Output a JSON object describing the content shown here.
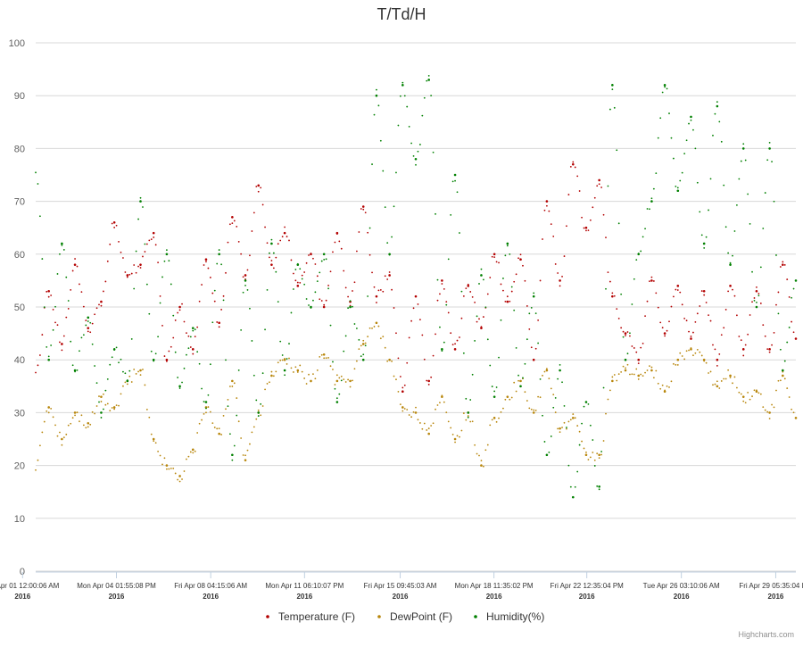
{
  "chart_data": {
    "type": "scatter",
    "title": "T/Td/H",
    "ylim": [
      0,
      100
    ],
    "y_ticks": [
      0,
      10,
      20,
      30,
      40,
      50,
      60,
      70,
      80,
      90,
      100
    ],
    "x_range": [
      "2016-04-01T12:00:06",
      "2016-04-30T12:00:00"
    ],
    "x_ticks": [
      {
        "label": "Fri Apr 01 12:00:06 AM",
        "year": "2016",
        "t": "2016-04-01T00:00:06"
      },
      {
        "label": "Mon Apr 04 01:55:08 PM",
        "year": "2016",
        "t": "2016-04-04T13:55:08"
      },
      {
        "label": "Fri Apr 08 04:15:06 AM",
        "year": "2016",
        "t": "2016-04-08T04:15:06"
      },
      {
        "label": "Mon Apr 11 06:10:07 PM",
        "year": "2016",
        "t": "2016-04-11T18:10:07"
      },
      {
        "label": "Fri Apr 15 09:45:03 AM",
        "year": "2016",
        "t": "2016-04-15T09:45:03"
      },
      {
        "label": "Mon Apr 18 11:35:02 PM",
        "year": "2016",
        "t": "2016-04-18T23:35:02"
      },
      {
        "label": "Fri Apr 22 12:35:04 PM",
        "year": "2016",
        "t": "2016-04-22T12:35:04"
      },
      {
        "label": "Tue Apr 26 03:10:06 AM",
        "year": "2016",
        "t": "2016-04-26T03:10:06"
      },
      {
        "label": "Fri Apr 29 05:35:04 PM",
        "year": "2016",
        "t": "2016-04-29T17:35:04"
      }
    ],
    "grid": true,
    "legend_position": "bottom-center",
    "series": [
      {
        "name": "Temperature (F)",
        "color": "#b30000",
        "x": [
          "2016-04-01T00:00",
          "2016-04-01T12:00",
          "2016-04-02T00:00",
          "2016-04-02T12:00",
          "2016-04-03T00:00",
          "2016-04-03T12:00",
          "2016-04-04T00:00",
          "2016-04-04T12:00",
          "2016-04-05T00:00",
          "2016-04-05T12:00",
          "2016-04-06T00:00",
          "2016-04-06T12:00",
          "2016-04-07T00:00",
          "2016-04-07T12:00",
          "2016-04-08T00:00",
          "2016-04-08T12:00",
          "2016-04-09T00:00",
          "2016-04-09T12:00",
          "2016-04-10T00:00",
          "2016-04-10T12:00",
          "2016-04-11T00:00",
          "2016-04-11T12:00",
          "2016-04-12T00:00",
          "2016-04-12T12:00",
          "2016-04-13T00:00",
          "2016-04-13T12:00",
          "2016-04-14T00:00",
          "2016-04-14T12:00",
          "2016-04-15T00:00",
          "2016-04-15T12:00",
          "2016-04-16T00:00",
          "2016-04-16T12:00",
          "2016-04-17T00:00",
          "2016-04-17T12:00",
          "2016-04-18T00:00",
          "2016-04-18T12:00",
          "2016-04-19T00:00",
          "2016-04-19T12:00",
          "2016-04-20T00:00",
          "2016-04-20T12:00",
          "2016-04-21T00:00",
          "2016-04-21T12:00",
          "2016-04-22T00:00",
          "2016-04-22T12:00",
          "2016-04-23T00:00",
          "2016-04-23T12:00",
          "2016-04-24T00:00",
          "2016-04-24T12:00",
          "2016-04-25T00:00",
          "2016-04-25T12:00",
          "2016-04-26T00:00",
          "2016-04-26T12:00",
          "2016-04-27T00:00",
          "2016-04-27T12:00",
          "2016-04-28T00:00",
          "2016-04-28T12:00",
          "2016-04-29T00:00",
          "2016-04-29T12:00",
          "2016-04-30T00:00",
          "2016-04-30T12:00"
        ],
        "values": [
          40,
          37,
          53,
          43,
          58,
          46,
          51,
          66,
          56,
          58,
          64,
          40,
          50,
          42,
          59,
          47,
          67,
          56,
          73,
          58,
          64,
          54,
          60,
          50,
          64,
          51,
          69,
          52,
          56,
          34,
          52,
          36,
          55,
          42,
          54,
          46,
          60,
          51,
          59,
          40,
          70,
          55,
          77,
          65,
          74,
          52,
          45,
          40,
          55,
          45,
          54,
          44,
          53,
          40,
          54,
          42,
          53,
          42,
          58,
          44
        ]
      },
      {
        "name": "DewPoint (F)",
        "color": "#b8860b",
        "x": [
          "2016-04-01T00:00",
          "2016-04-01T12:00",
          "2016-04-02T00:00",
          "2016-04-02T12:00",
          "2016-04-03T00:00",
          "2016-04-03T12:00",
          "2016-04-04T00:00",
          "2016-04-04T12:00",
          "2016-04-05T00:00",
          "2016-04-05T12:00",
          "2016-04-06T00:00",
          "2016-04-06T12:00",
          "2016-04-07T00:00",
          "2016-04-07T12:00",
          "2016-04-08T00:00",
          "2016-04-08T12:00",
          "2016-04-09T00:00",
          "2016-04-09T12:00",
          "2016-04-10T00:00",
          "2016-04-10T12:00",
          "2016-04-11T00:00",
          "2016-04-11T12:00",
          "2016-04-12T00:00",
          "2016-04-12T12:00",
          "2016-04-13T00:00",
          "2016-04-13T12:00",
          "2016-04-14T00:00",
          "2016-04-14T12:00",
          "2016-04-15T00:00",
          "2016-04-15T12:00",
          "2016-04-16T00:00",
          "2016-04-16T12:00",
          "2016-04-17T00:00",
          "2016-04-17T12:00",
          "2016-04-18T00:00",
          "2016-04-18T12:00",
          "2016-04-19T00:00",
          "2016-04-19T12:00",
          "2016-04-20T00:00",
          "2016-04-20T12:00",
          "2016-04-21T00:00",
          "2016-04-21T12:00",
          "2016-04-22T00:00",
          "2016-04-22T12:00",
          "2016-04-23T00:00",
          "2016-04-23T12:00",
          "2016-04-24T00:00",
          "2016-04-24T12:00",
          "2016-04-25T00:00",
          "2016-04-25T12:00",
          "2016-04-26T00:00",
          "2016-04-26T12:00",
          "2016-04-27T00:00",
          "2016-04-27T12:00",
          "2016-04-28T00:00",
          "2016-04-28T12:00",
          "2016-04-29T00:00",
          "2016-04-29T12:00",
          "2016-04-30T00:00",
          "2016-04-30T12:00"
        ],
        "values": [
          27,
          20,
          31,
          25,
          30,
          28,
          33,
          31,
          36,
          38,
          25,
          20,
          18,
          23,
          31,
          26,
          36,
          21,
          30,
          37,
          40,
          38,
          36,
          41,
          36,
          36,
          43,
          47,
          40,
          31,
          30,
          26,
          33,
          25,
          30,
          20,
          29,
          33,
          36,
          30,
          38,
          27,
          29,
          22,
          22,
          36,
          38,
          37,
          38,
          34,
          40,
          42,
          40,
          35,
          37,
          33,
          34,
          30,
          37,
          29
        ]
      },
      {
        "name": "Humidity(%)",
        "color": "#008000",
        "x": [
          "2016-04-01T00:00",
          "2016-04-01T12:00",
          "2016-04-02T00:00",
          "2016-04-02T12:00",
          "2016-04-03T00:00",
          "2016-04-03T12:00",
          "2016-04-04T00:00",
          "2016-04-04T12:00",
          "2016-04-05T00:00",
          "2016-04-05T12:00",
          "2016-04-06T00:00",
          "2016-04-06T12:00",
          "2016-04-07T00:00",
          "2016-04-07T12:00",
          "2016-04-08T00:00",
          "2016-04-08T12:00",
          "2016-04-09T00:00",
          "2016-04-09T12:00",
          "2016-04-10T00:00",
          "2016-04-10T12:00",
          "2016-04-11T00:00",
          "2016-04-11T12:00",
          "2016-04-12T00:00",
          "2016-04-12T12:00",
          "2016-04-13T00:00",
          "2016-04-13T12:00",
          "2016-04-14T00:00",
          "2016-04-14T12:00",
          "2016-04-15T00:00",
          "2016-04-15T12:00",
          "2016-04-16T00:00",
          "2016-04-16T12:00",
          "2016-04-17T00:00",
          "2016-04-17T12:00",
          "2016-04-18T00:00",
          "2016-04-18T12:00",
          "2016-04-19T00:00",
          "2016-04-19T12:00",
          "2016-04-20T00:00",
          "2016-04-20T12:00",
          "2016-04-21T00:00",
          "2016-04-21T12:00",
          "2016-04-22T00:00",
          "2016-04-22T12:00",
          "2016-04-23T00:00",
          "2016-04-23T12:00",
          "2016-04-24T00:00",
          "2016-04-24T12:00",
          "2016-04-25T00:00",
          "2016-04-25T12:00",
          "2016-04-26T00:00",
          "2016-04-26T12:00",
          "2016-04-27T00:00",
          "2016-04-27T12:00",
          "2016-04-28T00:00",
          "2016-04-28T12:00",
          "2016-04-29T00:00",
          "2016-04-29T12:00",
          "2016-04-30T00:00",
          "2016-04-30T12:00"
        ],
        "values": [
          60,
          76,
          40,
          62,
          38,
          48,
          30,
          42,
          36,
          70,
          40,
          60,
          35,
          46,
          32,
          60,
          22,
          55,
          30,
          62,
          38,
          58,
          50,
          60,
          32,
          50,
          40,
          90,
          60,
          92,
          78,
          93,
          42,
          75,
          30,
          56,
          33,
          62,
          35,
          52,
          22,
          38,
          14,
          32,
          16,
          92,
          40,
          60,
          70,
          92,
          72,
          86,
          62,
          88,
          58,
          80,
          50,
          80,
          38,
          55
        ]
      }
    ]
  },
  "credits": "Highcharts.com"
}
